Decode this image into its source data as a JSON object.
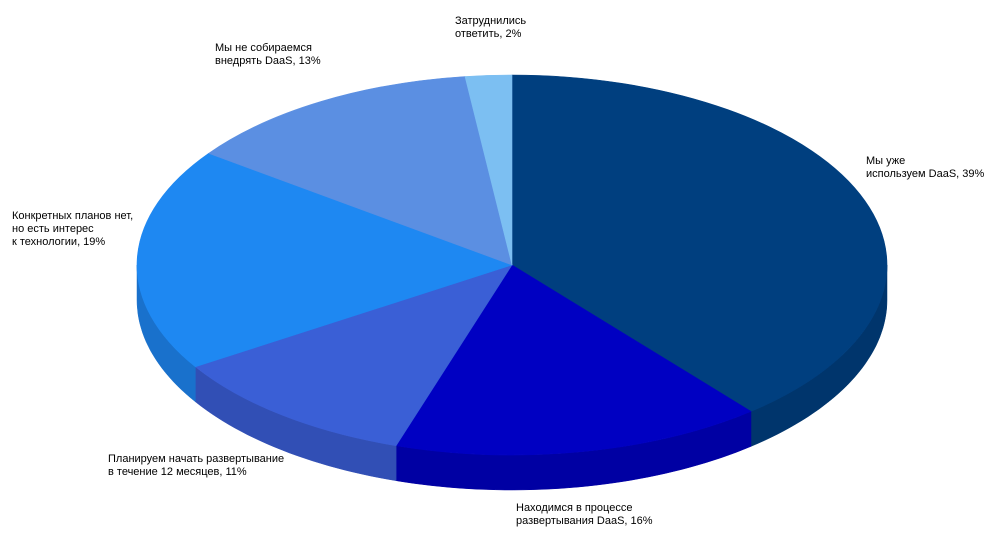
{
  "chart_data": {
    "type": "pie",
    "style": "3d",
    "slices": [
      {
        "label_lines": [
          "Мы уже",
          "используем DaaS, 39%"
        ],
        "value": 39,
        "color": "#003f7f",
        "side_color": "#00356c"
      },
      {
        "label_lines": [
          "Находимся в процессе",
          "развертывания DaaS, 16%"
        ],
        "value": 16,
        "color": "#0000c2",
        "side_color": "#0000a3"
      },
      {
        "label_lines": [
          "Планируем начать развертывание",
          "в течение 12 месяцев, 11%"
        ],
        "value": 11,
        "color": "#3a5fd6",
        "side_color": "#314fb5"
      },
      {
        "label_lines": [
          "Конкретных планов нет,",
          "но есть интерес",
          "к технологии, 19%"
        ],
        "value": 19,
        "color": "#1e88f2",
        "side_color": "#1971cc"
      },
      {
        "label_lines": [
          "Мы не собираемся",
          "внедрять DaaS, 13%"
        ],
        "value": 13,
        "color": "#5b8fe2",
        "side_color": "#4b78c0"
      },
      {
        "label_lines": [
          "Затруднились",
          "ответить, 2%"
        ],
        "value": 2,
        "color": "#7cbff2",
        "side_color": "#68a2cf"
      }
    ]
  }
}
